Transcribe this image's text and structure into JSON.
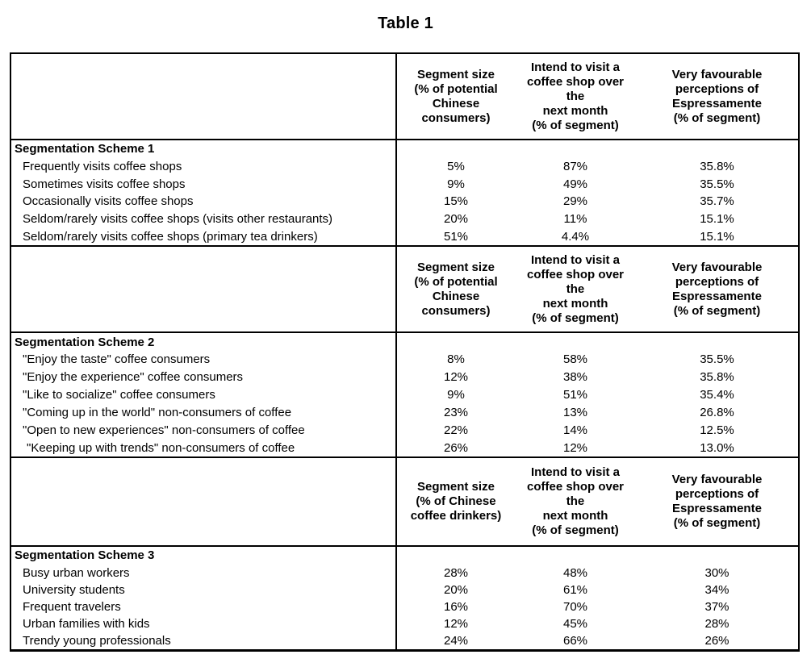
{
  "page": {
    "title": "Table 1"
  },
  "table": {
    "sections": [
      {
        "header": {
          "segment_size": "Segment size\n(% of potential\nChinese\nconsumers)",
          "intend": "Intend to visit a\ncoffee shop over the\nnext month\n(% of segment)",
          "perceptions": "Very favourable\nperceptions of\nEspressamente\n(% of segment)"
        },
        "title": "Segmentation Scheme 1",
        "rows": [
          {
            "label": "Frequently visits coffee shops",
            "segment_size": "5%",
            "intend": "87%",
            "perceptions": "35.8%"
          },
          {
            "label": "Sometimes visits coffee shops",
            "segment_size": "9%",
            "intend": "49%",
            "perceptions": "35.5%"
          },
          {
            "label": "Occasionally visits coffee shops",
            "segment_size": "15%",
            "intend": "29%",
            "perceptions": "35.7%"
          },
          {
            "label": "Seldom/rarely visits coffee shops (visits other restaurants)",
            "segment_size": "20%",
            "intend": "11%",
            "perceptions": "15.1%"
          },
          {
            "label": "Seldom/rarely visits coffee shops (primary tea drinkers)",
            "segment_size": "51%",
            "intend": "4.4%",
            "perceptions": "15.1%"
          }
        ]
      },
      {
        "header": {
          "segment_size": "Segment size\n(% of potential\nChinese\nconsumers)",
          "intend": "Intend to visit a\ncoffee shop over the\nnext month\n(% of segment)",
          "perceptions": "Very favourable\nperceptions of\nEspressamente\n(% of segment)"
        },
        "title": "Segmentation Scheme 2",
        "rows": [
          {
            "label": "\"Enjoy the taste\" coffee consumers",
            "segment_size": "8%",
            "intend": "58%",
            "perceptions": "35.5%"
          },
          {
            "label": "\"Enjoy the experience\" coffee consumers",
            "segment_size": "12%",
            "intend": "38%",
            "perceptions": "35.8%"
          },
          {
            "label": "\"Like to socialize\" coffee consumers",
            "segment_size": "9%",
            "intend": "51%",
            "perceptions": "35.4%"
          },
          {
            "label": "\"Coming up in the world\" non-consumers of coffee",
            "segment_size": "23%",
            "intend": "13%",
            "perceptions": "26.8%"
          },
          {
            "label": "\"Open to new experiences\" non-consumers of coffee",
            "segment_size": "22%",
            "intend": "14%",
            "perceptions": "12.5%"
          },
          {
            "label": "\"Keeping up with trends\" non-consumers of coffee",
            "segment_size": "26%",
            "intend": "12%",
            "perceptions": "13.0%"
          }
        ]
      },
      {
        "header": {
          "segment_size": "Segment size\n(% of Chinese\ncoffee drinkers)",
          "intend": "Intend to visit a\ncoffee shop over the\nnext month\n(% of segment)",
          "perceptions": "Very favourable\nperceptions of\nEspressamente\n(% of segment)"
        },
        "title": "Segmentation Scheme 3",
        "rows": [
          {
            "label": "Busy urban workers",
            "segment_size": "28%",
            "intend": "48%",
            "perceptions": "30%"
          },
          {
            "label": "University students",
            "segment_size": "20%",
            "intend": "61%",
            "perceptions": "34%"
          },
          {
            "label": "Frequent travelers",
            "segment_size": "16%",
            "intend": "70%",
            "perceptions": "37%"
          },
          {
            "label": "Urban families with kids",
            "segment_size": "12%",
            "intend": "45%",
            "perceptions": "28%"
          },
          {
            "label": "Trendy young professionals",
            "segment_size": "24%",
            "intend": "66%",
            "perceptions": "26%"
          }
        ]
      }
    ]
  }
}
